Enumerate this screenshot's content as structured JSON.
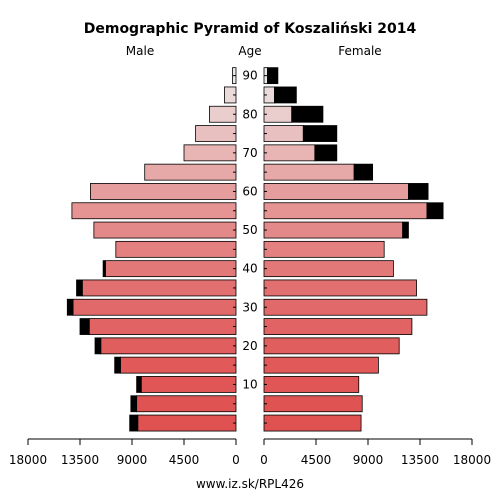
{
  "chart_data": {
    "type": "bar",
    "subtype": "population-pyramid",
    "title": "Demographic Pyramid of Koszaliński 2014",
    "left_label": "Male",
    "center_label": "Age",
    "right_label": "Female",
    "footer": "www.iz.sk/RPL426",
    "xlim": [
      0,
      18000
    ],
    "x_ticks_male": [
      "18000",
      "13500",
      "9000",
      "4500",
      "0"
    ],
    "x_ticks_female": [
      "0",
      "4500",
      "9000",
      "13500",
      "18000"
    ],
    "age_ticks": [
      "90",
      "80",
      "70",
      "60",
      "50",
      "40",
      "30",
      "20",
      "10"
    ],
    "age_groups": [
      "0-4",
      "5-9",
      "10-14",
      "15-19",
      "20-24",
      "25-29",
      "30-34",
      "35-39",
      "40-44",
      "45-49",
      "50-54",
      "55-59",
      "60-64",
      "65-69",
      "70-74",
      "75-79",
      "80-84",
      "85-89",
      "90+"
    ],
    "male": [
      8500,
      8600,
      8200,
      10000,
      11700,
      12700,
      14100,
      13300,
      11300,
      10400,
      12300,
      14200,
      12600,
      7900,
      4500,
      3500,
      2300,
      1000,
      300
    ],
    "male_excess": [
      700,
      500,
      400,
      500,
      500,
      800,
      500,
      500,
      200,
      0,
      0,
      0,
      0,
      0,
      0,
      0,
      0,
      0,
      0
    ],
    "female": [
      8400,
      8500,
      8200,
      9900,
      11700,
      12800,
      14100,
      13200,
      11200,
      10400,
      12000,
      14100,
      12500,
      7800,
      4400,
      3400,
      2400,
      900,
      300
    ],
    "female_excess": [
      0,
      0,
      0,
      0,
      0,
      0,
      0,
      0,
      0,
      0,
      500,
      1400,
      1700,
      1600,
      1900,
      2900,
      2700,
      1900,
      900
    ],
    "colors": {
      "bar_start": "#e05252",
      "bar_end": "#ece8e8",
      "excess": "#000000"
    }
  }
}
